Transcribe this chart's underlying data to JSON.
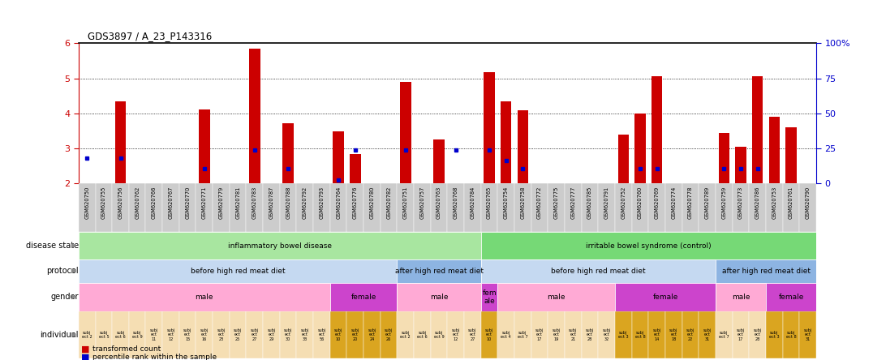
{
  "title": "GDS3897 / A_23_P143316",
  "samples": [
    "GSM620750",
    "GSM620755",
    "GSM620756",
    "GSM620762",
    "GSM620766",
    "GSM620767",
    "GSM620770",
    "GSM620771",
    "GSM620779",
    "GSM620781",
    "GSM620783",
    "GSM620787",
    "GSM620788",
    "GSM620792",
    "GSM620793",
    "GSM620764",
    "GSM620776",
    "GSM620780",
    "GSM620782",
    "GSM620751",
    "GSM620757",
    "GSM620763",
    "GSM620768",
    "GSM620784",
    "GSM620765",
    "GSM620754",
    "GSM620758",
    "GSM620772",
    "GSM620775",
    "GSM620777",
    "GSM620785",
    "GSM620791",
    "GSM620752",
    "GSM620760",
    "GSM620769",
    "GSM620774",
    "GSM620778",
    "GSM620789",
    "GSM620759",
    "GSM620773",
    "GSM620786",
    "GSM620753",
    "GSM620761",
    "GSM620790"
  ],
  "bar_heights": [
    2.0,
    2.0,
    4.35,
    2.0,
    2.0,
    2.0,
    2.0,
    4.12,
    2.0,
    2.0,
    5.85,
    2.0,
    3.72,
    2.0,
    2.0,
    3.5,
    2.85,
    2.0,
    2.0,
    4.9,
    2.0,
    3.25,
    2.0,
    2.0,
    5.18,
    4.35,
    4.1,
    2.0,
    2.0,
    2.0,
    2.0,
    2.0,
    3.4,
    4.0,
    5.05,
    2.0,
    2.0,
    2.0,
    3.45,
    3.05,
    5.05,
    3.9,
    3.6,
    2.0
  ],
  "blue_dots": [
    2.72,
    2.0,
    2.72,
    2.0,
    2.0,
    2.0,
    2.0,
    2.42,
    2.0,
    2.0,
    2.95,
    2.0,
    2.42,
    2.0,
    2.0,
    2.1,
    2.95,
    2.0,
    2.0,
    2.95,
    2.0,
    2.0,
    2.95,
    2.0,
    2.95,
    2.65,
    2.42,
    2.0,
    2.0,
    2.0,
    2.0,
    2.0,
    2.0,
    2.42,
    2.42,
    2.0,
    2.0,
    2.0,
    2.42,
    2.42,
    2.42,
    2.0,
    2.0,
    2.0
  ],
  "disease_state_groups": [
    {
      "label": "inflammatory bowel disease",
      "start": 0,
      "end": 24,
      "color": "#a8e6a0"
    },
    {
      "label": "irritable bowel syndrome (control)",
      "start": 24,
      "end": 44,
      "color": "#76d976"
    }
  ],
  "protocol_groups": [
    {
      "label": "before high red meat diet",
      "start": 0,
      "end": 19,
      "color": "#c5d9f1"
    },
    {
      "label": "after high red meat diet",
      "start": 19,
      "end": 24,
      "color": "#8db4e2"
    },
    {
      "label": "before high red meat diet",
      "start": 24,
      "end": 38,
      "color": "#c5d9f1"
    },
    {
      "label": "after high red meat diet",
      "start": 38,
      "end": 44,
      "color": "#8db4e2"
    }
  ],
  "gender_groups": [
    {
      "label": "male",
      "start": 0,
      "end": 15,
      "color": "#ffaad5"
    },
    {
      "label": "female",
      "start": 15,
      "end": 19,
      "color": "#cc44cc"
    },
    {
      "label": "male",
      "start": 19,
      "end": 24,
      "color": "#ffaad5"
    },
    {
      "label": "fem\nale",
      "start": 24,
      "end": 25,
      "color": "#cc44cc"
    },
    {
      "label": "male",
      "start": 25,
      "end": 32,
      "color": "#ffaad5"
    },
    {
      "label": "female",
      "start": 32,
      "end": 38,
      "color": "#cc44cc"
    },
    {
      "label": "male",
      "start": 38,
      "end": 41,
      "color": "#ffaad5"
    },
    {
      "label": "female",
      "start": 41,
      "end": 44,
      "color": "#cc44cc"
    }
  ],
  "individual_labels": [
    "subj\nect 2",
    "subj\nect 5",
    "subj\nect 6",
    "subj\nect 9",
    "subj\nect\n11",
    "subj\nect\n12",
    "subj\nect\n15",
    "subj\nect\n16",
    "subj\nect\n23",
    "subj\nect\n25",
    "subj\nect\n27",
    "subj\nect\n29",
    "subj\nect\n30",
    "subj\nect\n33",
    "subj\nect\n56",
    "subj\nect\n10",
    "subj\nect\n20",
    "subj\nect\n24",
    "subj\nect\n26",
    "subj\nect 2",
    "subj\nect 6",
    "subj\nect 9",
    "subj\nect\n12",
    "subj\nect\n27",
    "subj\nect\n10",
    "subj\nect 4",
    "subj\nect 7",
    "subj\nect\n17",
    "subj\nect\n19",
    "subj\nect\n21",
    "subj\nect\n28",
    "subj\nect\n32",
    "subj\nect 3",
    "subj\nect 8",
    "subj\nect\n14",
    "subj\nect\n18",
    "subj\nect\n22",
    "subj\nect\n31",
    "subj\nect 7",
    "subj\nect\n17",
    "subj\nect\n28",
    "subj\nect 3",
    "subj\nect 8",
    "subj\nect\n31"
  ],
  "individual_colors": [
    "#f5deb3",
    "#f5deb3",
    "#f5deb3",
    "#f5deb3",
    "#f5deb3",
    "#f5deb3",
    "#f5deb3",
    "#f5deb3",
    "#f5deb3",
    "#f5deb3",
    "#f5deb3",
    "#f5deb3",
    "#f5deb3",
    "#f5deb3",
    "#f5deb3",
    "#daa520",
    "#daa520",
    "#daa520",
    "#daa520",
    "#f5deb3",
    "#f5deb3",
    "#f5deb3",
    "#f5deb3",
    "#f5deb3",
    "#daa520",
    "#f5deb3",
    "#f5deb3",
    "#f5deb3",
    "#f5deb3",
    "#f5deb3",
    "#f5deb3",
    "#f5deb3",
    "#daa520",
    "#daa520",
    "#daa520",
    "#daa520",
    "#daa520",
    "#daa520",
    "#f5deb3",
    "#f5deb3",
    "#f5deb3",
    "#daa520",
    "#daa520",
    "#daa520"
  ],
  "ylim": [
    2.0,
    6.0
  ],
  "yticks_left": [
    2,
    3,
    4,
    5,
    6
  ],
  "yticks_right_vals": [
    0,
    25,
    50,
    75,
    100
  ],
  "yticks_right_pos": [
    2.0,
    3.0,
    4.0,
    5.0,
    6.0
  ],
  "bar_color": "#cc0000",
  "dot_color": "#0000cc",
  "tick_label_color": "#cc0000",
  "right_axis_color": "#0000cc"
}
